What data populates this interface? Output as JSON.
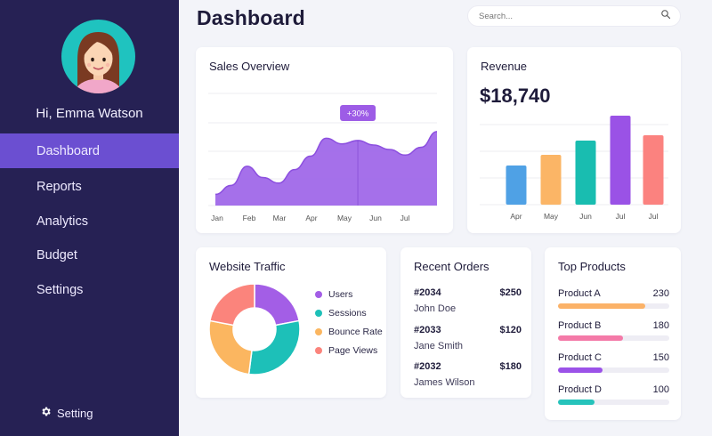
{
  "sidebar": {
    "greeting": "Hi, Emma Watson",
    "nav": [
      {
        "label": "Dashboard",
        "active": true
      },
      {
        "label": "Reports",
        "active": false
      },
      {
        "label": "Analytics",
        "active": false
      },
      {
        "label": "Budget",
        "active": false
      },
      {
        "label": "Settings",
        "active": false
      }
    ],
    "footer_label": "Setting",
    "footer_icon": "gear-icon"
  },
  "header": {
    "title": "Dashboard",
    "search_placeholder": "Search...",
    "search_icon": "search-icon"
  },
  "sales_overview": {
    "title": "Sales Overview",
    "badge": "+30%"
  },
  "revenue": {
    "title": "Revenue",
    "value": "$18,740"
  },
  "website_traffic": {
    "title": "Website Traffic",
    "legend": [
      {
        "label": "Users",
        "color": "#a35ee6"
      },
      {
        "label": "Sessions",
        "color": "#1dc0b8"
      },
      {
        "label": "Bounce Rate",
        "color": "#fbb660"
      },
      {
        "label": "Page Views",
        "color": "#fb847c"
      }
    ]
  },
  "recent_orders": {
    "title": "Recent Orders",
    "orders": [
      {
        "id": "#2034",
        "amount": "$250",
        "name": "John Doe"
      },
      {
        "id": "#2033",
        "amount": "$120",
        "name": "Jane Smith"
      },
      {
        "id": "#2032",
        "amount": "$180",
        "name": "James Wilson"
      }
    ]
  },
  "top_products": {
    "title": "Top Products",
    "products": [
      {
        "name": "Product A",
        "value": "230",
        "fill": 0.78,
        "color": "#fbb268"
      },
      {
        "name": "Product B",
        "value": "180",
        "fill": 0.58,
        "color": "#f47aa8"
      },
      {
        "name": "Product C",
        "value": "150",
        "fill": 0.4,
        "color": "#9b52e8"
      },
      {
        "name": "Product D",
        "value": "100",
        "fill": 0.33,
        "color": "#26c3bb"
      }
    ]
  },
  "chart_data": [
    {
      "type": "area",
      "title": "Sales Overview",
      "categories": [
        "Jan",
        "Feb",
        "Mar",
        "Apr",
        "May",
        "Jun",
        "Jul"
      ],
      "x": [
        0,
        1,
        2,
        3,
        4,
        5,
        6,
        7,
        8,
        9,
        10,
        11,
        12,
        13,
        14
      ],
      "values": [
        10,
        18,
        35,
        25,
        20,
        32,
        44,
        60,
        55,
        58,
        54,
        50,
        45,
        52,
        66
      ],
      "ylim": [
        0,
        100
      ],
      "annotation": "+30%",
      "color": "#9d64e8"
    },
    {
      "type": "bar",
      "title": "Revenue",
      "categories": [
        "Apr",
        "May",
        "Jun",
        "Jul",
        "Jul"
      ],
      "values": [
        44,
        56,
        72,
        100,
        78
      ],
      "ylim": [
        0,
        100
      ],
      "colors": [
        "#4fa1e5",
        "#fbb566",
        "#19bdb0",
        "#9a52e6",
        "#fb827f"
      ]
    },
    {
      "type": "pie",
      "title": "Website Traffic",
      "labels": [
        "Users",
        "Sessions",
        "Bounce Rate",
        "Page Views"
      ],
      "values": [
        22,
        30,
        26,
        22
      ],
      "colors": [
        "#a35ee6",
        "#1dc0b8",
        "#fbb660",
        "#fb847c"
      ]
    }
  ]
}
